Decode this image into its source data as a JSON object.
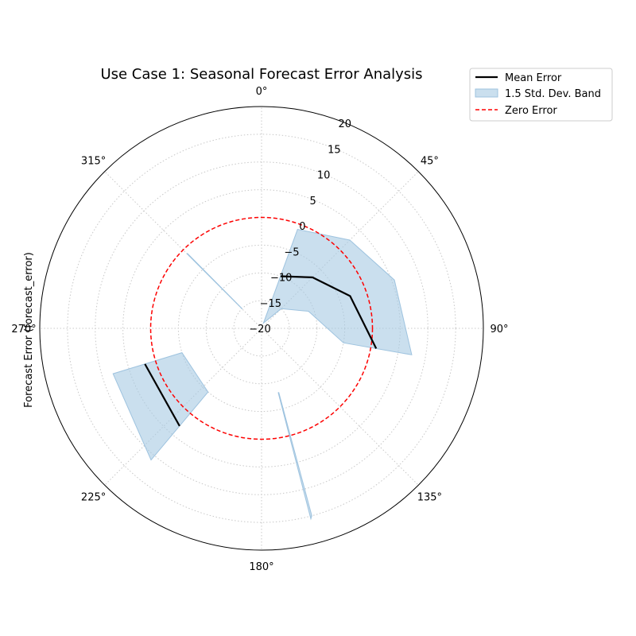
{
  "chart_data": {
    "type": "polar-line",
    "title": "Use Case 1: Seasonal Forecast Error Analysis",
    "ylabel": "Forecast Error (forecast_error)",
    "r_range": [
      -20,
      20
    ],
    "r_ticks": [
      "−20",
      "−15",
      "−10",
      "−5",
      "0",
      "5",
      "10",
      "15",
      "20"
    ],
    "theta_ticks": [
      "0°",
      "45°",
      "90°",
      "135°",
      "180°",
      "225°",
      "270°",
      "315°"
    ],
    "zero_value": 0,
    "grid": true,
    "legend_position": "top-right",
    "legend": {
      "mean": "Mean Error",
      "band": "1.5 Std. Dev. Band",
      "zero": "Zero Error"
    },
    "series": [
      {
        "name": "Mean Error",
        "segments": [
          [
            {
              "theta": 20,
              "r": -10
            },
            {
              "theta": 45,
              "r": -7
            },
            {
              "theta": 70,
              "r": -3
            },
            {
              "theta": 100,
              "r": 1
            }
          ],
          [
            {
              "theta": 220,
              "r": 3
            },
            {
              "theta": 253,
              "r": 2
            }
          ]
        ]
      },
      {
        "name": "1.5 Std. Dev. Band",
        "segments": [
          {
            "theta": [
              20,
              45,
              70,
              100
            ],
            "upper": [
              -1,
              2.5,
              5.5,
              7.5
            ],
            "lower": [
              -19,
              -15,
              -11,
              -5
            ]
          },
          {
            "theta": [
              220,
              253
            ],
            "upper": [
              11,
              8
            ],
            "lower": [
              -5,
              -5
            ]
          },
          {
            "theta": [
              165,
              165.5
            ],
            "upper": [
              15,
              15.5
            ],
            "lower": [
              -8,
              -8
            ]
          },
          {
            "theta": [
              315,
              315.3
            ],
            "upper": [
              -1,
              -1
            ],
            "lower": [
              -15,
              -15
            ]
          }
        ]
      }
    ]
  }
}
